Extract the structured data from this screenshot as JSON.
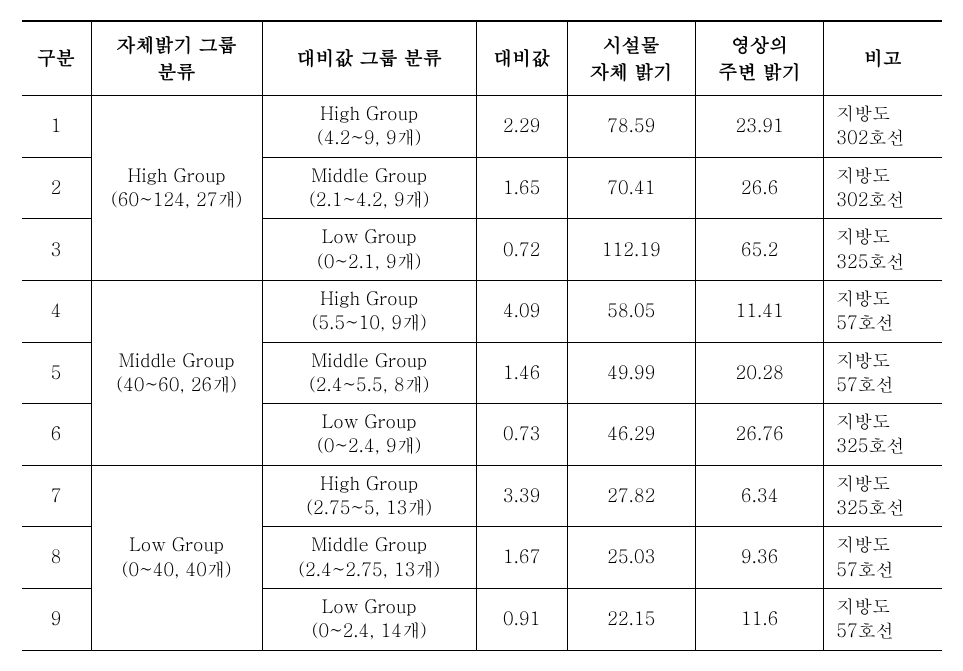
{
  "table": {
    "columns": {
      "gubun": "구분",
      "bright_group": "자체밝기 그룹\n분류",
      "contrast_group": "대비값 그룹 분류",
      "contrast": "대비값",
      "facility": "시설물\n자체 밝기",
      "surrounding": "영상의\n주변 밝기",
      "remarks": "비고"
    },
    "brightness_groups": [
      {
        "name": "High Group",
        "range": "(60~124, 27개)"
      },
      {
        "name": "Middle Group",
        "range": "(40~60, 26개)"
      },
      {
        "name": "Low Group",
        "range": "(0~40, 40개)"
      }
    ],
    "rows": [
      {
        "no": "1",
        "cg_name": "High Group",
        "cg_range": "(4.2~9, 9개)",
        "contrast": "2.29",
        "facility": "78.59",
        "surround": "23.91",
        "remarks1": "지방도",
        "remarks2": "302호선"
      },
      {
        "no": "2",
        "cg_name": "Middle Group",
        "cg_range": "(2.1~4.2, 9개)",
        "contrast": "1.65",
        "facility": "70.41",
        "surround": "26.6",
        "remarks1": "지방도",
        "remarks2": "302호선"
      },
      {
        "no": "3",
        "cg_name": "Low Group",
        "cg_range": "(0~2.1, 9개)",
        "contrast": "0.72",
        "facility": "112.19",
        "surround": "65.2",
        "remarks1": "지방도",
        "remarks2": "325호선"
      },
      {
        "no": "4",
        "cg_name": "High Group",
        "cg_range": "(5.5~10, 9개)",
        "contrast": "4.09",
        "facility": "58.05",
        "surround": "11.41",
        "remarks1": "지방도",
        "remarks2": "57호선"
      },
      {
        "no": "5",
        "cg_name": "Middle Group",
        "cg_range": "(2.4~5.5, 8개)",
        "contrast": "1.46",
        "facility": "49.99",
        "surround": "20.28",
        "remarks1": "지방도",
        "remarks2": "57호선"
      },
      {
        "no": "6",
        "cg_name": "Low Group",
        "cg_range": "(0~2.4, 9개)",
        "contrast": "0.73",
        "facility": "46.29",
        "surround": "26.76",
        "remarks1": "지방도",
        "remarks2": "325호선"
      },
      {
        "no": "7",
        "cg_name": "High Group",
        "cg_range": "(2.75~5, 13개)",
        "contrast": "3.39",
        "facility": "27.82",
        "surround": "6.34",
        "remarks1": "지방도",
        "remarks2": "325호선"
      },
      {
        "no": "8",
        "cg_name": "Middle Group",
        "cg_range": "(2.4~2.75, 13개)",
        "contrast": "1.67",
        "facility": "25.03",
        "surround": "9.36",
        "remarks1": "지방도",
        "remarks2": "57호선"
      },
      {
        "no": "9",
        "cg_name": "Low Group",
        "cg_range": "(0~2.4, 14개)",
        "contrast": "0.91",
        "facility": "22.15",
        "surround": "11.6",
        "remarks1": "지방도",
        "remarks2": "57호선"
      }
    ]
  },
  "style": {
    "border_heavy": "#000000",
    "background": "#ffffff",
    "header_fontsize": 19,
    "cell_fontsize": 18,
    "font_family": "Batang, serif"
  }
}
